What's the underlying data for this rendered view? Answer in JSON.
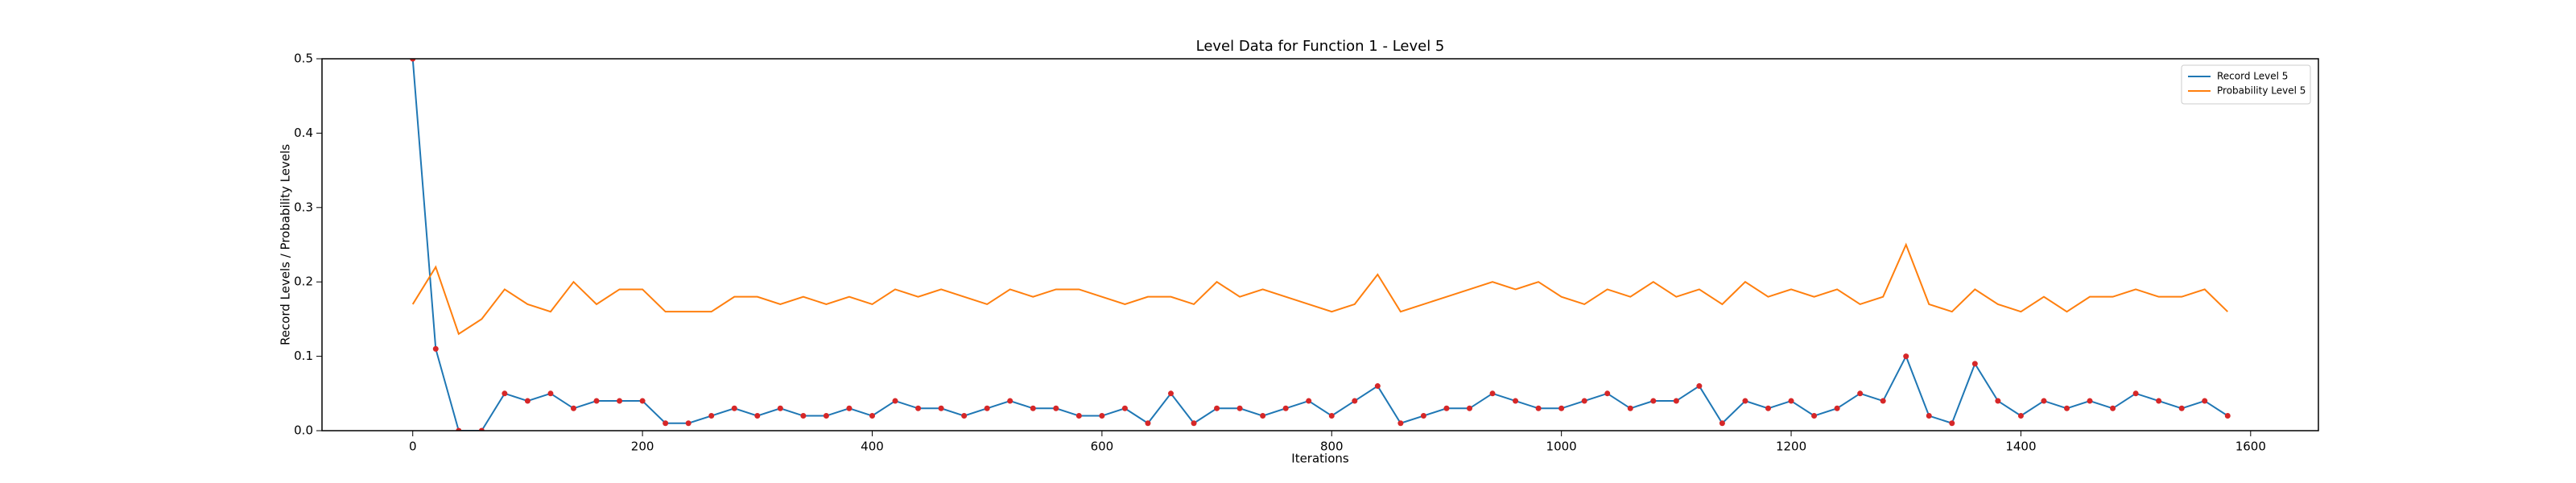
{
  "chart_data": {
    "type": "line",
    "title": "Level Data for Function 1 - Level 5",
    "x_label": "Iterations",
    "y_label": "Record Levels / Probability Levels",
    "x": [
      0,
      20,
      40,
      60,
      80,
      100,
      120,
      140,
      160,
      180,
      200,
      220,
      240,
      260,
      280,
      300,
      320,
      340,
      360,
      380,
      400,
      420,
      440,
      460,
      480,
      500,
      520,
      540,
      560,
      580,
      600,
      620,
      640,
      660,
      680,
      700,
      720,
      740,
      760,
      780,
      800,
      820,
      840,
      860,
      880,
      900,
      920,
      940,
      960,
      980,
      1000,
      1020,
      1040,
      1060,
      1080,
      1100,
      1120,
      1140,
      1160,
      1180,
      1200,
      1220,
      1240,
      1260,
      1280,
      1300,
      1320,
      1340,
      1360,
      1380,
      1400,
      1420,
      1440,
      1460,
      1480,
      1500,
      1520,
      1540,
      1560,
      1580
    ],
    "series": [
      {
        "name": "Record Level 5",
        "color": "#1f77b4",
        "marker_color": "#d62728",
        "values": [
          0.5,
          0.11,
          0,
          0,
          0.05,
          0.04,
          0.05,
          0.03,
          0.04,
          0.04,
          0.04,
          0.01,
          0.01,
          0.02,
          0.03,
          0.02,
          0.03,
          0.02,
          0.02,
          0.03,
          0.02,
          0.04,
          0.03,
          0.03,
          0.02,
          0.03,
          0.04,
          0.03,
          0.03,
          0.02,
          0.02,
          0.03,
          0.01,
          0.05,
          0.01,
          0.03,
          0.03,
          0.02,
          0.03,
          0.04,
          0.02,
          0.04,
          0.06,
          0.01,
          0.02,
          0.03,
          0.03,
          0.05,
          0.04,
          0.03,
          0.03,
          0.04,
          0.05,
          0.03,
          0.04,
          0.04,
          0.06,
          0.01,
          0.04,
          0.03,
          0.04,
          0.02,
          0.03,
          0.05,
          0.04,
          0.1,
          0.02,
          0.01,
          0.09,
          0.04,
          0.02,
          0.04,
          0.03,
          0.04,
          0.03,
          0.05,
          0.04,
          0.03,
          0.04,
          0.02
        ]
      },
      {
        "name": "Probability Level 5",
        "color": "#ff7f0e",
        "values": [
          0.17,
          0.22,
          0.13,
          0.15,
          0.19,
          0.17,
          0.16,
          0.2,
          0.17,
          0.19,
          0.19,
          0.16,
          0.16,
          0.16,
          0.18,
          0.18,
          0.17,
          0.18,
          0.17,
          0.18,
          0.17,
          0.19,
          0.18,
          0.19,
          0.18,
          0.17,
          0.19,
          0.18,
          0.19,
          0.19,
          0.18,
          0.17,
          0.18,
          0.18,
          0.17,
          0.2,
          0.18,
          0.19,
          0.18,
          0.17,
          0.16,
          0.17,
          0.21,
          0.16,
          0.17,
          0.18,
          0.19,
          0.2,
          0.19,
          0.2,
          0.18,
          0.17,
          0.19,
          0.18,
          0.2,
          0.18,
          0.19,
          0.17,
          0.2,
          0.18,
          0.19,
          0.18,
          0.19,
          0.17,
          0.18,
          0.25,
          0.17,
          0.16,
          0.19,
          0.17,
          0.16,
          0.18,
          0.16,
          0.18,
          0.18,
          0.19,
          0.18,
          0.18,
          0.19,
          0.16
        ]
      }
    ],
    "xlim": [
      -79,
      1659
    ],
    "xticks": [
      0,
      200,
      400,
      600,
      800,
      1000,
      1200,
      1400,
      1600
    ],
    "ylim": [
      0,
      0.5
    ],
    "yticks": [
      {
        "value": 0,
        "label": "0.0"
      },
      0.1,
      0.2,
      0.3,
      0.4,
      0.5
    ],
    "grid": false,
    "legend": "upper right"
  }
}
